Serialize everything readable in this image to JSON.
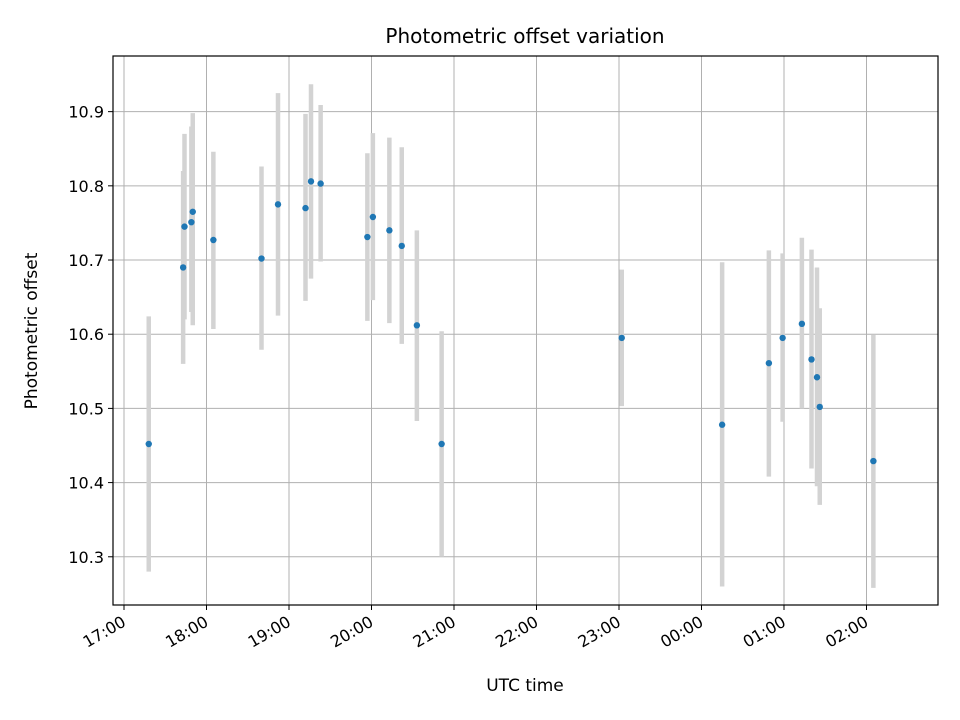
{
  "chart_data": {
    "type": "scatter",
    "title": "Photometric offset variation",
    "xlabel": "UTC time",
    "ylabel": "Photometric offset",
    "x_axis": "time",
    "x_ticks": [
      "17:00",
      "18:00",
      "19:00",
      "20:00",
      "21:00",
      "22:00",
      "23:00",
      "00:00",
      "01:00",
      "02:00"
    ],
    "y_ticks": [
      "10.3",
      "10.4",
      "10.5",
      "10.6",
      "10.7",
      "10.8",
      "10.9"
    ],
    "xlim": [
      "16:52",
      "02:52"
    ],
    "ylim": [
      10.235,
      10.975
    ],
    "grid": true,
    "colors": {
      "points": "#1f77b4",
      "errorbars": "#d3d3d3",
      "grid": "#b0b0b0"
    },
    "points": [
      {
        "x": "17:18",
        "y": 10.452,
        "ylow": 10.28,
        "yhigh": 10.624
      },
      {
        "x": "17:43",
        "y": 10.69,
        "ylow": 10.56,
        "yhigh": 10.82
      },
      {
        "x": "17:44",
        "y": 10.745,
        "ylow": 10.62,
        "yhigh": 10.87
      },
      {
        "x": "17:49",
        "y": 10.751,
        "ylow": 10.63,
        "yhigh": 10.88
      },
      {
        "x": "17:50",
        "y": 10.765,
        "ylow": 10.612,
        "yhigh": 10.898
      },
      {
        "x": "18:05",
        "y": 10.727,
        "ylow": 10.607,
        "yhigh": 10.846
      },
      {
        "x": "18:40",
        "y": 10.702,
        "ylow": 10.579,
        "yhigh": 10.826
      },
      {
        "x": "18:52",
        "y": 10.775,
        "ylow": 10.625,
        "yhigh": 10.925
      },
      {
        "x": "19:12",
        "y": 10.77,
        "ylow": 10.645,
        "yhigh": 10.897
      },
      {
        "x": "19:16",
        "y": 10.806,
        "ylow": 10.675,
        "yhigh": 10.937
      },
      {
        "x": "19:23",
        "y": 10.803,
        "ylow": 10.698,
        "yhigh": 10.909
      },
      {
        "x": "19:57",
        "y": 10.731,
        "ylow": 10.618,
        "yhigh": 10.844
      },
      {
        "x": "20:01",
        "y": 10.758,
        "ylow": 10.646,
        "yhigh": 10.871
      },
      {
        "x": "20:13",
        "y": 10.74,
        "ylow": 10.615,
        "yhigh": 10.865
      },
      {
        "x": "20:22",
        "y": 10.719,
        "ylow": 10.587,
        "yhigh": 10.852
      },
      {
        "x": "20:33",
        "y": 10.612,
        "ylow": 10.483,
        "yhigh": 10.74
      },
      {
        "x": "20:51",
        "y": 10.452,
        "ylow": 10.3,
        "yhigh": 10.604
      },
      {
        "x": "23:02",
        "y": 10.595,
        "ylow": 10.503,
        "yhigh": 10.687
      },
      {
        "x": "00:15",
        "y": 10.478,
        "ylow": 10.26,
        "yhigh": 10.697
      },
      {
        "x": "00:49",
        "y": 10.561,
        "ylow": 10.408,
        "yhigh": 10.713
      },
      {
        "x": "00:59",
        "y": 10.595,
        "ylow": 10.482,
        "yhigh": 10.709
      },
      {
        "x": "01:13",
        "y": 10.614,
        "ylow": 10.5,
        "yhigh": 10.73
      },
      {
        "x": "01:20",
        "y": 10.566,
        "ylow": 10.419,
        "yhigh": 10.714
      },
      {
        "x": "01:24",
        "y": 10.542,
        "ylow": 10.395,
        "yhigh": 10.69
      },
      {
        "x": "01:26",
        "y": 10.502,
        "ylow": 10.37,
        "yhigh": 10.635
      },
      {
        "x": "02:05",
        "y": 10.429,
        "ylow": 10.258,
        "yhigh": 10.599
      }
    ]
  }
}
